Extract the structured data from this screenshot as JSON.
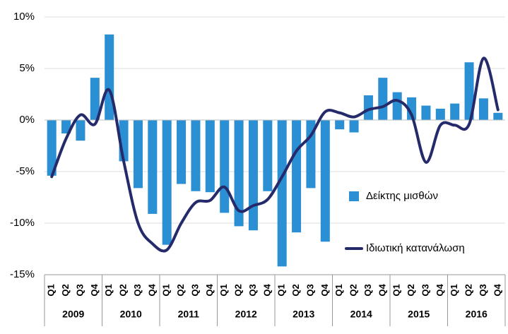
{
  "chart_data": {
    "type": "bar_line",
    "categories": [
      "Q1",
      "Q2",
      "Q3",
      "Q4",
      "Q1",
      "Q2",
      "Q3",
      "Q4",
      "Q1",
      "Q2",
      "Q3",
      "Q4",
      "Q1",
      "Q2",
      "Q3",
      "Q4",
      "Q1",
      "Q2",
      "Q3",
      "Q4",
      "Q1",
      "Q2",
      "Q3",
      "Q4",
      "Q1",
      "Q2",
      "Q3",
      "Q4",
      "Q1",
      "Q2",
      "Q3",
      "Q4"
    ],
    "years": [
      "2009",
      "2010",
      "2011",
      "2012",
      "2013",
      "2014",
      "2015",
      "2016"
    ],
    "series": [
      {
        "name": "Δείκτης μισθών",
        "type": "bar",
        "color": "#2b8fd3",
        "values": [
          -5.4,
          -1.3,
          -2.0,
          4.1,
          8.3,
          -4.0,
          -6.6,
          -9.1,
          -12.1,
          -6.2,
          -6.9,
          -7.0,
          -9.0,
          -10.3,
          -10.7,
          -6.9,
          -14.2,
          -10.9,
          -6.6,
          -11.8,
          -0.9,
          -1.2,
          2.4,
          4.1,
          2.7,
          2.2,
          1.4,
          1.1,
          1.6,
          5.6,
          2.1,
          0.7
        ]
      },
      {
        "name": "Ιδιωτική κατανάλωση",
        "type": "line",
        "color": "#252a6b",
        "values": [
          -5.5,
          -1.8,
          0.5,
          -0.4,
          2.9,
          -4.0,
          -10.0,
          -12.0,
          -12.6,
          -10.0,
          -8.0,
          -7.8,
          -6.5,
          -8.8,
          -8.3,
          -7.7,
          -5.5,
          -3.0,
          -1.5,
          0.8,
          0.7,
          0.3,
          1.0,
          1.3,
          1.9,
          0.5,
          -4.1,
          -0.5,
          -0.5,
          -0.4,
          6.0,
          1.0
        ]
      }
    ],
    "ylim": [
      -15,
      10
    ],
    "yticks": [
      {
        "value": -15,
        "label": "-15%"
      },
      {
        "value": -10,
        "label": "-10%"
      },
      {
        "value": -5,
        "label": "-5%"
      },
      {
        "value": 0,
        "label": "0%"
      },
      {
        "value": 5,
        "label": "5%"
      },
      {
        "value": 10,
        "label": "10%"
      }
    ],
    "grid": true,
    "legend": "right"
  }
}
